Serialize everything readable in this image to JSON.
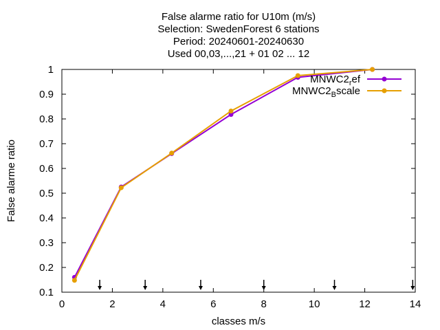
{
  "chart_data": {
    "type": "line",
    "title_lines": [
      "False alarme ratio  for U10m (m/s)",
      "Selection: SwedenForest      6 stations",
      "Period: 20240601-20240630",
      "Used 00,03,...,21 + 01 02 ... 12"
    ],
    "xlabel": "classes m/s",
    "ylabel": "False alarme ratio",
    "xlim": [
      0,
      14
    ],
    "ylim": [
      0.1,
      1
    ],
    "xticks": [
      "0",
      "2",
      "4",
      "6",
      "8",
      "10",
      "12",
      "14"
    ],
    "yticks": [
      "0.1",
      "0.2",
      "0.3",
      "0.4",
      "0.5",
      "0.6",
      "0.7",
      "0.8",
      "0.9",
      "1"
    ],
    "grid": false,
    "legend_position": "top-right",
    "arrow_markers_x": [
      1.5,
      3.3,
      5.5,
      8.0,
      10.8,
      13.9
    ],
    "series": [
      {
        "name_base": "MNWC2",
        "name_sub": "r",
        "name_rest": "ef",
        "color": "#9400d3",
        "x": [
          0.5,
          2.35,
          4.35,
          6.7,
          9.35,
          12.3
        ],
        "y": [
          0.16,
          0.525,
          0.66,
          0.818,
          0.968,
          1.0
        ]
      },
      {
        "name_base": "MNWC2",
        "name_sub": "B",
        "name_rest": "scale",
        "color": "#e69f00",
        "x": [
          0.5,
          2.35,
          4.35,
          6.7,
          9.35,
          12.3
        ],
        "y": [
          0.148,
          0.522,
          0.662,
          0.832,
          0.975,
          1.0
        ]
      }
    ]
  }
}
